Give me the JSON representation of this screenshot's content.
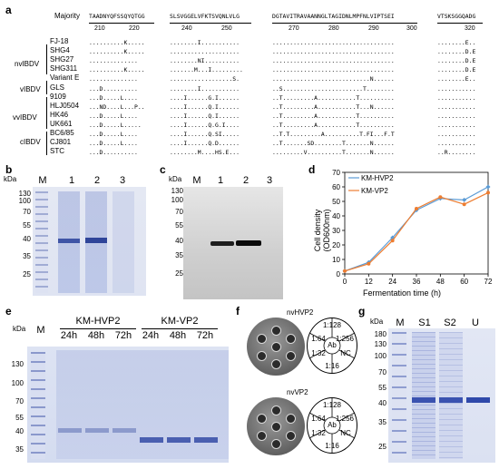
{
  "panels": {
    "a": "a",
    "b": "b",
    "c": "c",
    "d": "d",
    "e": "e",
    "f": "f",
    "g": "g"
  },
  "alignment": {
    "majority_label": "Majority",
    "blocks": [
      {
        "consensus": "TAADNYQFSSQYQTGG",
        "ticks": [
          "210",
          "220"
        ]
      },
      {
        "consensus": "SLSVGGELVFKTSVQNLVLG",
        "ticks": [
          "240",
          "250"
        ]
      },
      {
        "consensus": "DGTAVITRAVAANNGLTAGIDNLMPFNLVIPTSEI",
        "ticks": [
          "270",
          "280",
          "290",
          "300"
        ]
      },
      {
        "consensus": "VTSKSGGQADG",
        "ticks": [
          "320"
        ]
      }
    ],
    "groups": [
      "nvIBDV",
      "vIBDV",
      "vvIBDV",
      "cIBDV"
    ],
    "strains": [
      "FJ-18",
      "SHG4",
      "SHG27",
      "SHG311",
      "Variant E",
      "GLS",
      "9109",
      "HLJ0504",
      "HK46",
      "UK661",
      "BC6/85",
      "CJ801",
      "STC"
    ],
    "rows": [
      [
        "..........K.....",
        "........I...........",
        "...................................",
        "........E.."
      ],
      [
        "..........K.....",
        "....................",
        "...................................",
        "........D.E"
      ],
      [
        "..............",
        "........NI..........",
        "...................................",
        "........D.E"
      ],
      [
        "..........K.....",
        ".......M...I.........",
        "...................................",
        "........D.E"
      ],
      [
        "..............",
        "..................S.",
        "............................N......",
        "........E.."
      ],
      [
        "...D..........",
        "........I...........",
        "..S.......................T........",
        "..........."
      ],
      [
        "...D.....L....",
        "....I......G.I......",
        "..T.........A...........T..........",
        "...........  "
      ],
      [
        "...ND....L...P..",
        "....I......Q.I......",
        "..T.........A...........T...N......",
        "..........."
      ],
      [
        "...D.....L....",
        "....I......Q.I......",
        "..T.........A...........T..........",
        "..........."
      ],
      [
        "...D.....L.....",
        "....I......Q.G.I....",
        "..T.........A...........T..........",
        "..........."
      ],
      [
        "...D.....L....",
        "....I......Q.SI.....",
        "..T.T.........A..........T.FI...F.T",
        "..........."
      ],
      [
        "...D.....L....",
        "....I......Q.D......",
        "..T.......SD........T.......N......",
        "..........."
      ],
      [
        "...D..........",
        "........M....HS.E...",
        ".........V..........T.......N......",
        "..R........"
      ]
    ]
  },
  "gel_b": {
    "kda_label": "kDa",
    "markers": [
      "130",
      "100",
      "70",
      "55",
      "40",
      "35",
      "25"
    ],
    "lanes": [
      "M",
      "1",
      "2",
      "3"
    ]
  },
  "blot_c": {
    "kda_label": "kDa",
    "markers": [
      "130",
      "100",
      "70",
      "55",
      "40",
      "35",
      "25"
    ],
    "lanes": [
      "M",
      "1",
      "2",
      "3"
    ]
  },
  "chart_data": {
    "type": "line",
    "xlabel": "Fermentation time (h)",
    "ylabel": "Cell density (OD600nm)",
    "x": [
      0,
      12,
      24,
      36,
      48,
      60,
      72
    ],
    "xlim": [
      0,
      72
    ],
    "ylim": [
      0,
      70
    ],
    "yticks": [
      0,
      10,
      20,
      30,
      40,
      50,
      60,
      70
    ],
    "series": [
      {
        "name": "KM-HVP2",
        "color": "#5b9bd5",
        "values": [
          2,
          8,
          25,
          44,
          52,
          51,
          60
        ]
      },
      {
        "name": "KM-VP2",
        "color": "#ed7d31",
        "values": [
          2,
          7,
          23,
          45,
          53,
          48,
          56
        ]
      }
    ],
    "legend": "top-left"
  },
  "gel_e": {
    "kda_label": "kDa",
    "markers": [
      "130",
      "100",
      "70",
      "55",
      "40",
      "35"
    ],
    "lane_m": "M",
    "group1": "KM-HVP2",
    "group2": "KM-VP2",
    "times": [
      "24h",
      "48h",
      "72h",
      "24h",
      "48h",
      "72h"
    ]
  },
  "panel_f": {
    "top_title": "nvHVP2",
    "bottom_title": "nvVP2",
    "sectors": [
      "1:128",
      "1:256",
      "NC",
      "1:16",
      "1:32",
      "1:64"
    ],
    "center": "Ab"
  },
  "gel_g": {
    "kda_label": "kDa",
    "markers": [
      "180",
      "130",
      "100",
      "70",
      "55",
      "40",
      "35",
      "25"
    ],
    "lanes": [
      "M",
      "S1",
      "S2",
      "U"
    ]
  }
}
